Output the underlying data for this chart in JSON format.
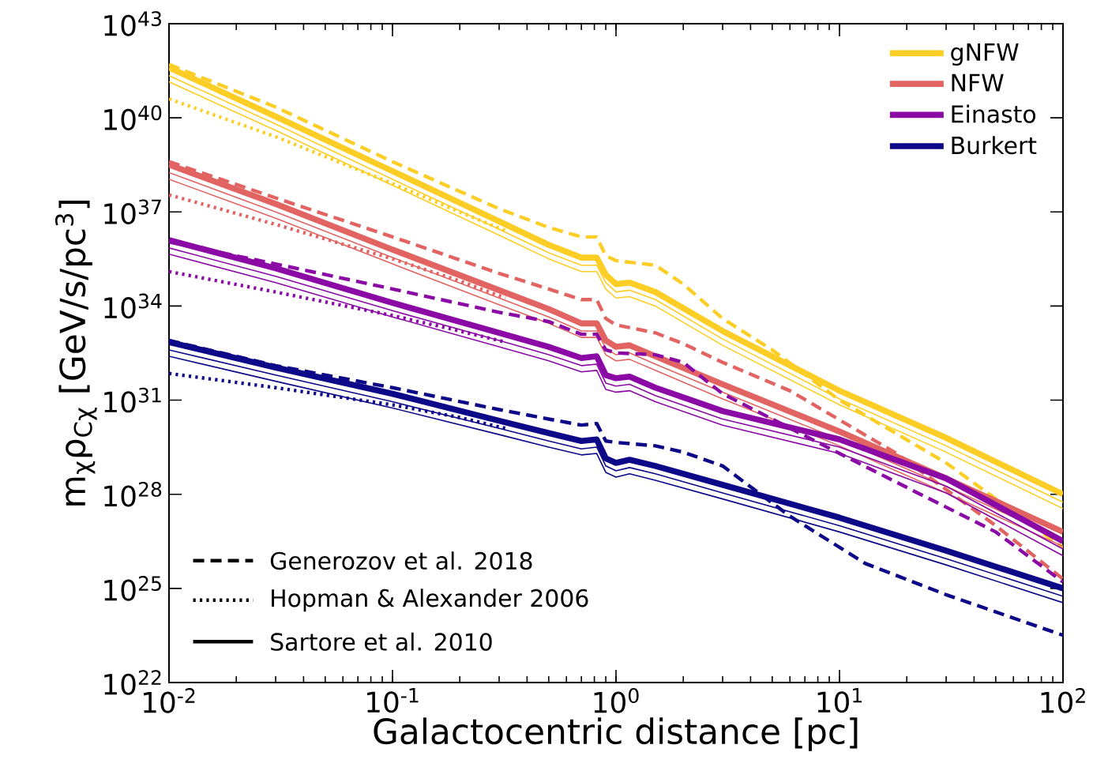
{
  "chart_data": {
    "type": "line",
    "xlabel": "Galactocentric distance [pc]",
    "ylabel": "m$_{χ}$ρ$_{Cχ}$ [GeV/s/pc$^{3}$]",
    "log": "xy",
    "legend": "top right",
    "xlim": [
      0.01,
      100
    ],
    "ylim": [
      1e+22,
      1e+43
    ],
    "xticks": [
      {
        "value": 0.01,
        "label": "10$^{-2}$"
      },
      {
        "value": 0.1,
        "label": "10$^{-1}$"
      },
      {
        "value": 1,
        "label": "10$^{0}$"
      },
      {
        "value": 10,
        "label": "10$^{1}$"
      },
      {
        "value": 100,
        "label": "10$^{2}$"
      }
    ],
    "yticks": [
      {
        "value": 1e+22,
        "label": "10$^{22}$"
      },
      {
        "value": 1e+25,
        "label": "10$^{25}$"
      },
      {
        "value": 1e+28,
        "label": "10$^{28}$"
      },
      {
        "value": 1e+31,
        "label": "10$^{31}$"
      },
      {
        "value": 1e+34,
        "label": "10$^{34}$"
      },
      {
        "value": 1e+37,
        "label": "10$^{37}$"
      },
      {
        "value": 1e+40,
        "label": "10$^{40}$"
      },
      {
        "value": 1e+43,
        "label": "10$^{43}$"
      }
    ],
    "annotations": [
      "Generozov et al. 2018",
      "Hopman & Alexander 2006",
      "Sartore et al. 2010"
    ],
    "series": [
      {
        "color": "#fcce25",
        "line_style": "dashed",
        "x": [
          0.01,
          0.03,
          0.1,
          0.3,
          0.5,
          0.7,
          0.82,
          0.9,
          1.0,
          1.5,
          2,
          3,
          5,
          10,
          30,
          100
        ],
        "values": [
          5e+41,
          2.2e+40,
          4e+38,
          1.26e+37,
          3.2e+36,
          1.6e+36,
          1.6e+36,
          4e+35,
          2.8e+35,
          2e+35,
          5e+34,
          4e+33,
          4e+32,
          1e+31,
          1e+29,
          2e+26
        ]
      },
      {
        "color": "#fcce25",
        "line_style": "dotted",
        "x": [
          0.01,
          0.03,
          0.1,
          0.2,
          0.32
        ],
        "values": [
          4e+40,
          2.5e+39,
          8e+37,
          1e+37,
          2.5e+36
        ]
      },
      {
        "name": "gNFW",
        "color": "#fcce25",
        "line_style": "solid",
        "x": [
          0.01,
          0.03,
          0.1,
          0.3,
          0.5,
          0.7,
          0.82,
          0.9,
          1.0,
          1.15,
          1.5,
          3,
          10,
          30,
          100
        ],
        "values": [
          4e+41,
          1.1e+40,
          2e+38,
          5e+36,
          8.9e+35,
          3.5e+35,
          3.5e+35,
          1e+35,
          5e+34,
          5.6e+34,
          2.8e+34,
          1.6e+33,
          2e+31,
          6.3e+29,
          1e+28
        ]
      },
      {
        "color": "#fcce25",
        "line_style": "solid",
        "x": [
          0.01,
          0.03,
          0.1,
          0.3,
          0.5,
          0.7,
          0.82,
          0.9,
          1.0,
          1.15,
          1.5,
          3,
          10,
          30,
          100
        ],
        "values": [
          2.2e+41,
          6.3e+39,
          1.1e+38,
          2.8e+36,
          5e+35,
          2e+35,
          2e+35,
          5.6e+34,
          2.8e+34,
          3.2e+34,
          1.6e+34,
          8.9e+32,
          1.1e+31,
          3.5e+29,
          5.6e+27
        ]
      },
      {
        "color": "#fcce25",
        "line_style": "solid",
        "x": [
          0.01,
          0.03,
          0.1,
          0.3,
          0.5,
          0.7,
          0.82,
          0.9,
          1.0,
          1.15,
          1.5,
          3,
          10,
          30,
          100
        ],
        "values": [
          1.4e+41,
          4e+39,
          7.1e+37,
          1.8e+36,
          3.2e+35,
          1.26e+35,
          1.26e+35,
          3.5e+34,
          1.8e+34,
          2e+34,
          1e+34,
          5.6e+32,
          7.1e+30,
          2.2e+29,
          3.5e+27
        ]
      },
      {
        "color": "#e16462",
        "line_style": "dashed",
        "x": [
          0.01,
          0.03,
          0.1,
          0.3,
          0.5,
          0.7,
          0.82,
          0.9,
          1.0,
          1.5,
          2,
          3,
          6,
          18,
          50,
          100
        ],
        "values": [
          4e+38,
          2.8e+37,
          1.6e+36,
          1.1e+35,
          3.5e+34,
          1.6e+34,
          1.6e+34,
          4e+33,
          2.5e+33,
          1.4e+33,
          6.3e+32,
          1.6e+32,
          2e+31,
          2e+29,
          1e+27,
          2e+25
        ]
      },
      {
        "color": "#e16462",
        "line_style": "dotted",
        "x": [
          0.01,
          0.03,
          0.1,
          0.2,
          0.32
        ],
        "values": [
          3.5e+37,
          4e+36,
          3.2e+35,
          6.3e+34,
          1.8e+34
        ]
      },
      {
        "name": "NFW",
        "color": "#e16462",
        "line_style": "solid",
        "x": [
          0.01,
          0.03,
          0.1,
          0.3,
          0.5,
          0.7,
          0.82,
          0.9,
          1.0,
          1.15,
          1.5,
          3,
          10,
          30,
          100
        ],
        "values": [
          3.2e+38,
          1.8e+37,
          6.3e+35,
          3.2e+34,
          8e+33,
          2.8e+33,
          2.8e+33,
          8e+32,
          5e+32,
          5.6e+32,
          2.5e+32,
          3.2e+31,
          1e+30,
          3.2e+28,
          6.3e+26
        ]
      },
      {
        "color": "#e16462",
        "line_style": "solid",
        "x": [
          0.01,
          0.03,
          0.1,
          0.3,
          0.5,
          0.7,
          0.82,
          0.9,
          1.0,
          1.15,
          1.5,
          3,
          10,
          30,
          100
        ],
        "values": [
          1.8e+38,
          1e+37,
          3.5e+35,
          1.8e+34,
          4.5e+33,
          1.6e+33,
          1.6e+33,
          4.5e+32,
          2.8e+32,
          3.2e+32,
          1.4e+32,
          1.8e+31,
          5.6e+29,
          1.8e+28,
          3.5e+26
        ]
      },
      {
        "color": "#e16462",
        "line_style": "solid",
        "x": [
          0.01,
          0.03,
          0.1,
          0.3,
          0.5,
          0.7,
          0.82,
          0.9,
          1.0,
          1.15,
          1.5,
          3,
          10,
          30,
          100
        ],
        "values": [
          1.1e+38,
          6.3e+36,
          2.2e+35,
          1.1e+34,
          2.8e+33,
          1e+33,
          1e+33,
          2.8e+32,
          1.8e+32,
          2e+32,
          8.9e+31,
          1.1e+31,
          3.5e+29,
          1.1e+28,
          2.2e+26
        ]
      },
      {
        "color": "#8b0aa5",
        "line_style": "dashed",
        "x": [
          0.01,
          0.03,
          0.1,
          0.3,
          0.5,
          0.7,
          0.82,
          0.9,
          1.0,
          1.5,
          2,
          3,
          5,
          10,
          23,
          50,
          100
        ],
        "values": [
          1.1e+36,
          2.2e+35,
          3.5e+34,
          6.3e+33,
          3.2e+33,
          1.26e+33,
          1.26e+33,
          4e+32,
          3.2e+32,
          2.8e+32,
          1.6e+32,
          1.6e+31,
          2.5e+30,
          2e+29,
          1e+28,
          6.3e+26,
          1.6e+25
        ]
      },
      {
        "color": "#8b0aa5",
        "line_style": "dotted",
        "x": [
          0.01,
          0.03,
          0.1,
          0.2,
          0.32
        ],
        "values": [
          1.26e+35,
          2.8e+34,
          5e+33,
          1.6e+33,
          7.1e+32
        ]
      },
      {
        "name": "Einasto",
        "color": "#8b0aa5",
        "line_style": "solid",
        "x": [
          0.01,
          0.03,
          0.1,
          0.3,
          0.5,
          0.7,
          0.82,
          0.9,
          1.0,
          1.15,
          1.5,
          3,
          10,
          30,
          100
        ],
        "values": [
          1.26e+36,
          1.6e+35,
          1.26e+34,
          1.4e+33,
          5e+32,
          2.2e+32,
          2.5e+32,
          6.3e+31,
          5e+31,
          5.6e+31,
          2.5e+31,
          4.5e+30,
          5.6e+29,
          3.2e+28,
          3.2e+26
        ]
      },
      {
        "color": "#8b0aa5",
        "line_style": "solid",
        "x": [
          0.01,
          0.03,
          0.1,
          0.3,
          0.5,
          0.7,
          0.82,
          0.9,
          1.0,
          1.15,
          1.5,
          3,
          10,
          30,
          100
        ],
        "values": [
          7.1e+35,
          8.9e+34,
          7.1e+33,
          8e+32,
          2.8e+32,
          1.26e+32,
          1.4e+32,
          3.5e+31,
          2.8e+31,
          3.2e+31,
          1.4e+31,
          2.5e+30,
          3.2e+29,
          1.8e+28,
          1.8e+26
        ]
      },
      {
        "color": "#8b0aa5",
        "line_style": "solid",
        "x": [
          0.01,
          0.03,
          0.1,
          0.3,
          0.5,
          0.7,
          0.82,
          0.9,
          1.0,
          1.15,
          1.5,
          3,
          10,
          30,
          100
        ],
        "values": [
          4.5e+35,
          5.6e+34,
          4.5e+33,
          5e+32,
          1.8e+32,
          8e+31,
          8.9e+31,
          2.2e+31,
          1.8e+31,
          2e+31,
          8.9e+30,
          1.6e+30,
          2e+29,
          1.1e+28,
          1.1e+26
        ]
      },
      {
        "color": "#0d0887",
        "line_style": "dashed",
        "x": [
          0.01,
          0.03,
          0.1,
          0.3,
          0.5,
          0.7,
          0.82,
          0.9,
          1.0,
          1.5,
          2,
          3,
          6,
          13,
          30,
          100
        ],
        "values": [
          8e+32,
          1.26e+32,
          2.5e+31,
          5e+30,
          2.5e+30,
          1.6e+30,
          1.8e+30,
          5e+29,
          4.5e+29,
          3.5e+29,
          2.2e+29,
          8e+28,
          2e+27,
          6.3e+25,
          6.3e+24,
          3.2e+23
        ]
      },
      {
        "color": "#0d0887",
        "line_style": "dotted",
        "x": [
          0.01,
          0.03,
          0.1,
          0.2,
          0.32
        ],
        "values": [
          7.1e+31,
          2.5e+31,
          7.1e+30,
          2.8e+30,
          1.26e+30
        ]
      },
      {
        "name": "Burkert",
        "color": "#0d0887",
        "line_style": "solid",
        "x": [
          0.01,
          0.03,
          0.1,
          0.3,
          0.5,
          0.7,
          0.82,
          0.9,
          1.0,
          1.15,
          1.5,
          3,
          10,
          30,
          100
        ],
        "values": [
          7.1e+32,
          1.1e+32,
          1.6e+31,
          2.2e+30,
          8.9e+29,
          5e+29,
          5.6e+29,
          1.4e+29,
          1e+29,
          1.26e+29,
          8e+28,
          2e+28,
          1.8e+27,
          1.6e+26,
          1e+25
        ]
      },
      {
        "color": "#0d0887",
        "line_style": "solid",
        "x": [
          0.01,
          0.03,
          0.1,
          0.3,
          0.5,
          0.7,
          0.82,
          0.9,
          1.0,
          1.15,
          1.5,
          3,
          10,
          30,
          100
        ],
        "values": [
          4e+32,
          6.3e+31,
          8.9e+30,
          1.26e+30,
          5e+29,
          2.8e+29,
          3.2e+29,
          8e+28,
          5.6e+28,
          7.1e+28,
          4.5e+28,
          1.1e+28,
          1e+27,
          8.9e+25,
          5.6e+24
        ]
      },
      {
        "color": "#0d0887",
        "line_style": "solid",
        "x": [
          0.01,
          0.03,
          0.1,
          0.3,
          0.5,
          0.7,
          0.82,
          0.9,
          1.0,
          1.15,
          1.5,
          3,
          10,
          30,
          100
        ],
        "values": [
          2.5e+32,
          4e+31,
          5.6e+30,
          8e+29,
          3.2e+29,
          1.8e+29,
          2e+29,
          5e+28,
          3.5e+28,
          4.5e+28,
          2.8e+28,
          7.1e+27,
          6.3e+26,
          5.6e+25,
          3.5e+24
        ]
      }
    ]
  }
}
